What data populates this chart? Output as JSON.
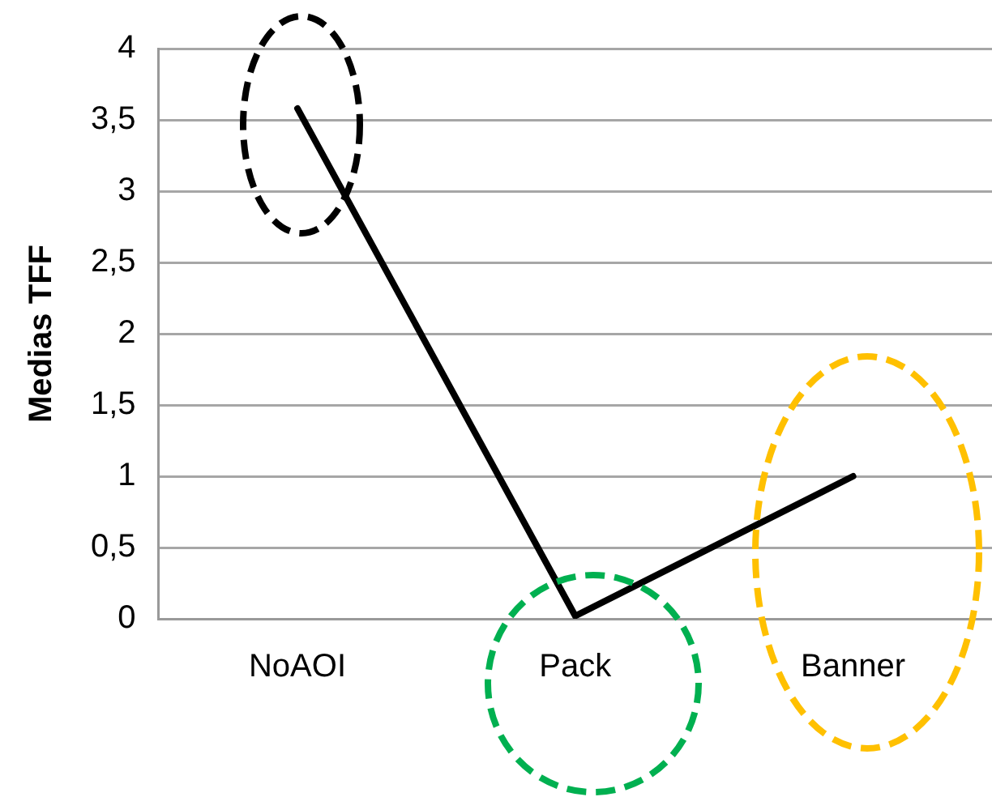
{
  "chart_data": {
    "type": "line",
    "ylabel": "Medias TFF",
    "categories": [
      "NoAOI",
      "Pack",
      "Banner"
    ],
    "series": [
      {
        "color": "#000000",
        "values": [
          3.58,
          0.02,
          1.0
        ]
      }
    ],
    "ylim": [
      0,
      4
    ],
    "yticks": [
      0,
      {
        "value": 0.5,
        "label": "0,5"
      },
      1,
      {
        "value": 1.5,
        "label": "1,5"
      },
      2,
      {
        "value": 2.5,
        "label": "2,5"
      },
      3,
      {
        "value": 3.5,
        "label": "3,5"
      },
      4
    ],
    "grid": "y",
    "legend": false,
    "marker": "none",
    "line_style": "solid"
  }
}
